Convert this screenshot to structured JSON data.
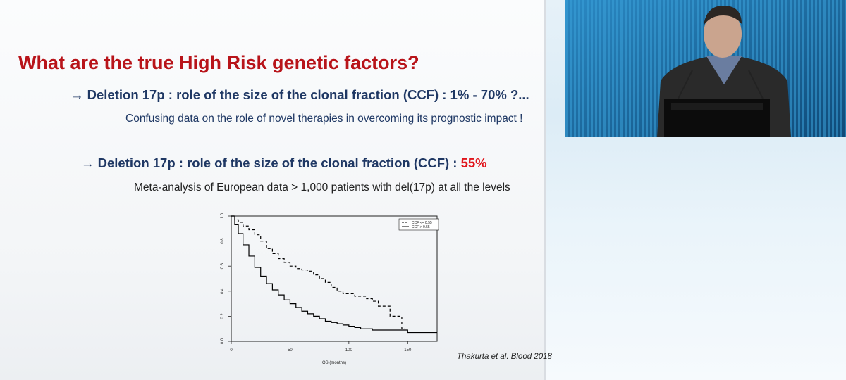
{
  "slide": {
    "title": "What are the true High Risk genetic factors?",
    "point1": {
      "arrow": "→",
      "text": "Deletion 17p : role of the size of the clonal fraction (CCF) : 1% - 70% ?..."
    },
    "point1_sub": "Confusing data on the role of novel therapies in overcoming its prognostic impact !",
    "point2": {
      "arrow": "→",
      "text": "Deletion 17p : role of the size of the clonal fraction (CCF) : ",
      "highlight": "55%"
    },
    "point2_sub": "Meta-analysis of European data > 1,000 patients with del(17p) at all the levels",
    "citation": "Thakurta et al. Blood 2018"
  },
  "colors": {
    "title": "#b8141a",
    "heading": "#1f3864",
    "highlight": "#e0161c"
  },
  "chart_data": {
    "type": "line",
    "xlabel": "OS (months)",
    "ylabel": "",
    "xlim": [
      0,
      175
    ],
    "ylim": [
      0,
      1.0
    ],
    "x_ticks": [
      "0",
      "50",
      "100",
      "150"
    ],
    "y_ticks": [
      "0.0",
      "0.2",
      "0.4",
      "0.6",
      "0.8",
      "1.0"
    ],
    "legend_position": "top-right",
    "grid": false,
    "series": [
      {
        "name": "CCF <= 0.55",
        "style": "dashed",
        "x": [
          0,
          3,
          6,
          10,
          15,
          20,
          25,
          30,
          35,
          40,
          45,
          50,
          55,
          60,
          65,
          70,
          75,
          80,
          85,
          90,
          95,
          100,
          105,
          110,
          115,
          120,
          125,
          130,
          135,
          140,
          145,
          148
        ],
        "y": [
          1.0,
          0.97,
          0.95,
          0.92,
          0.89,
          0.85,
          0.8,
          0.74,
          0.7,
          0.66,
          0.63,
          0.6,
          0.58,
          0.57,
          0.56,
          0.53,
          0.5,
          0.47,
          0.43,
          0.4,
          0.38,
          0.38,
          0.36,
          0.36,
          0.34,
          0.32,
          0.28,
          0.28,
          0.2,
          0.2,
          0.1,
          0.1
        ]
      },
      {
        "name": "CCF > 0.55",
        "style": "solid",
        "x": [
          0,
          3,
          6,
          10,
          15,
          20,
          25,
          30,
          35,
          40,
          45,
          50,
          55,
          60,
          65,
          70,
          75,
          80,
          85,
          90,
          95,
          100,
          105,
          110,
          120,
          130,
          140,
          150,
          160,
          175
        ],
        "y": [
          1.0,
          0.93,
          0.86,
          0.77,
          0.68,
          0.59,
          0.52,
          0.46,
          0.41,
          0.37,
          0.33,
          0.3,
          0.27,
          0.24,
          0.22,
          0.2,
          0.18,
          0.16,
          0.15,
          0.14,
          0.13,
          0.12,
          0.11,
          0.1,
          0.09,
          0.09,
          0.09,
          0.07,
          0.07,
          0.07
        ]
      }
    ]
  },
  "video": {
    "description_icon": "speaker-video-feed"
  }
}
